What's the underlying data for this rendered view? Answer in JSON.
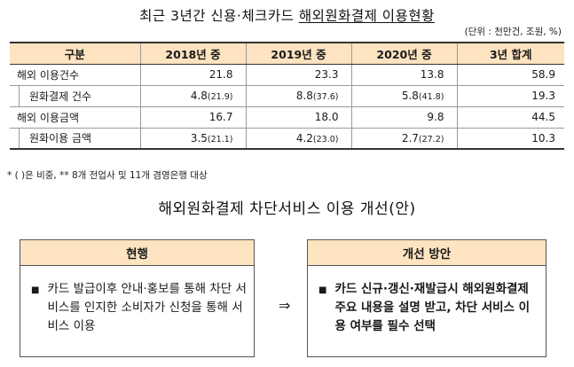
{
  "title_plain": "최근 3년간 신용·체크카드 ",
  "title_underlined": "해외원화결제 이용현황",
  "unit": "(단위 : 천만건, 조원, %)",
  "table": {
    "headers": [
      "구분",
      "2018년 중",
      "2019년 중",
      "2020년 중",
      "3년 합계"
    ],
    "rows": [
      {
        "label": "해외 이용건수",
        "vals": [
          "21.8",
          "23.3",
          "13.8"
        ],
        "shares": [
          "",
          "",
          ""
        ],
        "total": "58.9"
      },
      {
        "label": "원화결제 건수",
        "vals": [
          "4.8",
          "8.8",
          "5.8"
        ],
        "shares": [
          "(21.9)",
          "(37.6)",
          "(41.8)"
        ],
        "total": "19.3"
      },
      {
        "label": "해외 이용금액",
        "vals": [
          "16.7",
          "18.0",
          "9.8"
        ],
        "shares": [
          "",
          "",
          ""
        ],
        "total": "44.5"
      },
      {
        "label": "원화이용 금액",
        "vals": [
          "3.5",
          "4.2",
          "2.7"
        ],
        "shares": [
          "(21.1)",
          "(23.0)",
          "(27.2)"
        ],
        "total": "10.3"
      }
    ]
  },
  "note": "* ( )은 비중, ** 8개 전업사 및 11개 겸영은행 대상",
  "subtitle": "해외원화결제 차단서비스 이용 개선(안)",
  "current": {
    "header": "현행",
    "bullet": "■",
    "text": "카드 발급이후 안내·홍보를 통해 차단 서비스를 인지한 소비자가 신청을 통해 서비스 이용"
  },
  "arrow": "⇒",
  "improved": {
    "header": "개선 방안",
    "bullet": "■",
    "text": "카드 신규·갱신·재발급시 해외원화결제 주요 내용을 설명 받고, 차단 서비스 이용 여부를 필수 선택"
  },
  "colors": {
    "header_fill": "#fde3c0"
  }
}
